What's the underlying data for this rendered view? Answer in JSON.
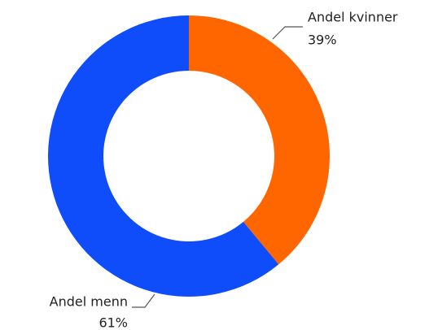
{
  "chart_data": {
    "type": "donut",
    "categories": [
      "Andel kvinner",
      "Andel menn"
    ],
    "values": [
      39,
      61
    ],
    "value_labels": [
      "39%",
      "61%"
    ],
    "colors": [
      "#ff6600",
      "#0f4dfb"
    ]
  }
}
